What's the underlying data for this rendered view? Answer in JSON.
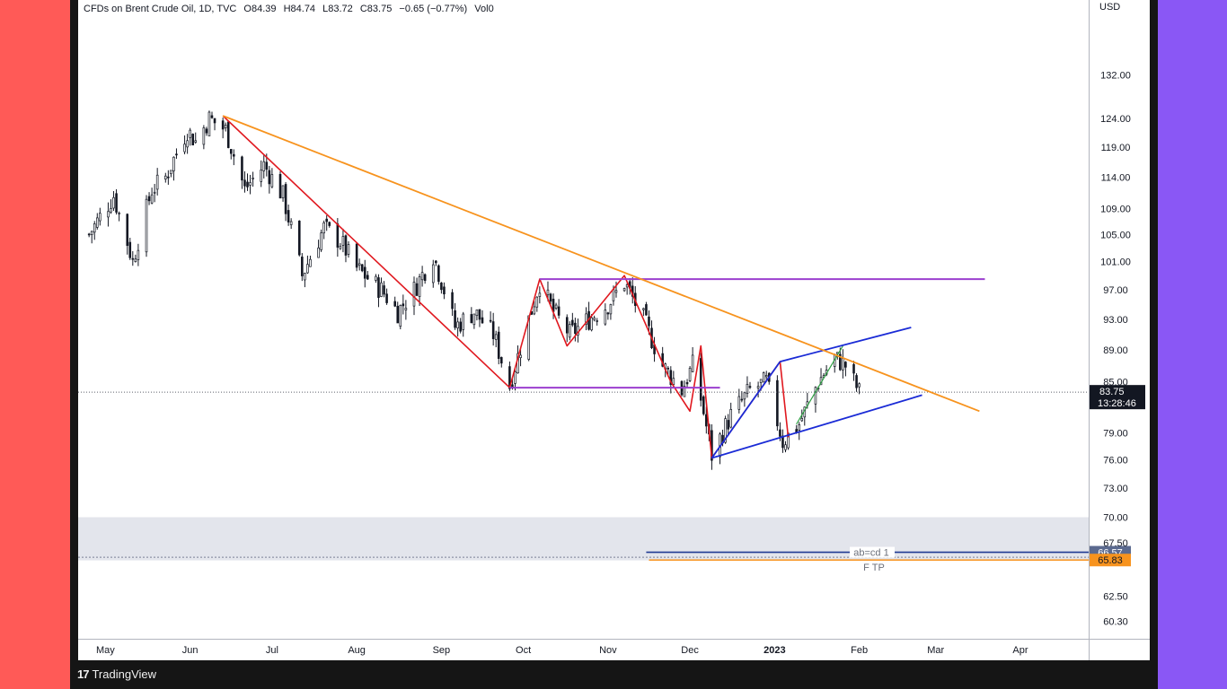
{
  "header": {
    "symbol": "CFDs on Brent Crude Oil, 1D, TVC",
    "open": "O84.39",
    "high": "H84.74",
    "low": "L83.72",
    "close": "C83.75",
    "change": "−0.65 (−0.77%)",
    "volume": "Vol0"
  },
  "footer": {
    "brand": "TradingView"
  },
  "colors": {
    "background_left": "#ff5a57",
    "background_right": "#8a57f5",
    "frame": "#151515",
    "candle_up": "#ffffff",
    "candle_down": "#131722",
    "trendline": "#f7931e",
    "zigzag": "#e0181f",
    "channel": "#1a2bd6",
    "range": "#9b3fcf",
    "zone": "#d9dce6"
  },
  "chart_data": {
    "type": "candlestick",
    "title": "CFDs on Brent Crude Oil, 1D, TVC",
    "ylabel": "USD",
    "ylim": [
      58.8,
      147
    ],
    "yscale": "log",
    "x_ticks": [
      "May",
      "Jun",
      "Jul",
      "Aug",
      "Sep",
      "Oct",
      "Nov",
      "Dec",
      "2023",
      "Feb",
      "Mar",
      "Apr"
    ],
    "x_tick_dates": [
      "2022-05-01",
      "2022-06-01",
      "2022-07-01",
      "2022-08-01",
      "2022-09-01",
      "2022-10-01",
      "2022-11-01",
      "2022-12-01",
      "2023-01-01",
      "2023-02-01",
      "2023-03-01",
      "2023-04-01"
    ],
    "y_ticks": [
      "132.00",
      "124.00",
      "119.00",
      "114.00",
      "109.00",
      "105.00",
      "101.00",
      "97.00",
      "93.00",
      "89.00",
      "85.00",
      "79.00",
      "76.00",
      "73.00",
      "70.00",
      "67.50",
      "62.50",
      "60.30"
    ],
    "last_price": {
      "value": 83.75,
      "label": "83.75",
      "countdown": "13:28:46"
    },
    "price_path": [
      [
        "2022-04-25",
        105
      ],
      [
        "2022-05-04",
        111
      ],
      [
        "2022-05-11",
        101
      ],
      [
        "2022-05-18",
        112
      ],
      [
        "2022-05-23",
        114
      ],
      [
        "2022-05-31",
        122
      ],
      [
        "2022-06-03",
        120
      ],
      [
        "2022-06-08",
        124
      ],
      [
        "2022-06-14",
        122
      ],
      [
        "2022-06-21",
        112
      ],
      [
        "2022-06-28",
        116
      ],
      [
        "2022-07-05",
        111
      ],
      [
        "2022-07-12",
        99
      ],
      [
        "2022-07-20",
        106
      ],
      [
        "2022-07-26",
        104
      ],
      [
        "2022-08-01",
        100
      ],
      [
        "2022-08-10",
        97
      ],
      [
        "2022-08-16",
        94
      ],
      [
        "2022-08-22",
        97
      ],
      [
        "2022-08-29",
        102
      ],
      [
        "2022-09-06",
        92
      ],
      [
        "2022-09-13",
        94
      ],
      [
        "2022-09-20",
        91
      ],
      [
        "2022-09-26",
        84.5
      ],
      [
        "2022-10-03",
        93
      ],
      [
        "2022-10-07",
        98
      ],
      [
        "2022-10-12",
        94
      ],
      [
        "2022-10-18",
        91
      ],
      [
        "2022-10-25",
        93
      ],
      [
        "2022-11-01",
        95
      ],
      [
        "2022-11-07",
        98
      ],
      [
        "2022-11-14",
        93
      ],
      [
        "2022-11-21",
        87
      ],
      [
        "2022-11-28",
        84
      ],
      [
        "2022-12-02",
        87
      ],
      [
        "2022-12-05",
        83
      ],
      [
        "2022-12-09",
        76.5
      ],
      [
        "2022-12-16",
        81
      ],
      [
        "2022-12-23",
        84
      ],
      [
        "2022-12-29",
        85
      ],
      [
        "2023-01-04",
        78
      ],
      [
        "2023-01-10",
        80
      ],
      [
        "2023-01-17",
        85
      ],
      [
        "2023-01-23",
        88
      ],
      [
        "2023-01-27",
        87
      ],
      [
        "2023-02-01",
        83.75
      ]
    ],
    "drawings": {
      "trendline": [
        [
          "2022-06-13",
          124.5
        ],
        [
          "2023-03-17",
          81.5
        ]
      ],
      "zigzag_down": [
        [
          "2022-06-13",
          124.5
        ],
        [
          "2022-09-26",
          84.3
        ]
      ],
      "zigzag_pattern": [
        [
          "2022-09-26",
          84.3
        ],
        [
          "2022-10-07",
          98.5
        ],
        [
          "2022-10-17",
          89.5
        ],
        [
          "2022-11-07",
          99
        ],
        [
          "2022-11-24",
          85
        ],
        [
          "2022-12-01",
          81.5
        ],
        [
          "2022-12-05",
          89.5
        ],
        [
          "2022-12-09",
          76.2
        ],
        [
          "2023-01-03",
          87.5
        ],
        [
          "2023-01-06",
          78.5
        ]
      ],
      "green_segment": [
        [
          "2023-01-09",
          80
        ],
        [
          "2023-01-26",
          89.5
        ]
      ],
      "range_top": {
        "from": "2022-10-07",
        "to": "2023-03-19",
        "value": 98.5
      },
      "range_bottom": {
        "from": "2022-09-26",
        "to": "2022-12-12",
        "value": 84.3
      },
      "channel_upper": [
        [
          "2023-01-03",
          87.5
        ],
        [
          "2023-02-20",
          91.9
        ]
      ],
      "channel_lower": [
        [
          "2022-12-09",
          76.2
        ],
        [
          "2023-02-24",
          83.4
        ]
      ],
      "channel_left": [
        [
          "2022-12-09",
          76.2
        ],
        [
          "2023-01-03",
          87.5
        ]
      ],
      "zone": [
        65.8,
        70.0
      ]
    },
    "levels": [
      {
        "label": "ab=cd 1",
        "value": 66.57,
        "value_label": "66.57",
        "from": "2022-11-15"
      },
      {
        "label": "F TP",
        "value": 65.83,
        "value_label": "65.83",
        "from": "2022-11-16"
      }
    ]
  }
}
